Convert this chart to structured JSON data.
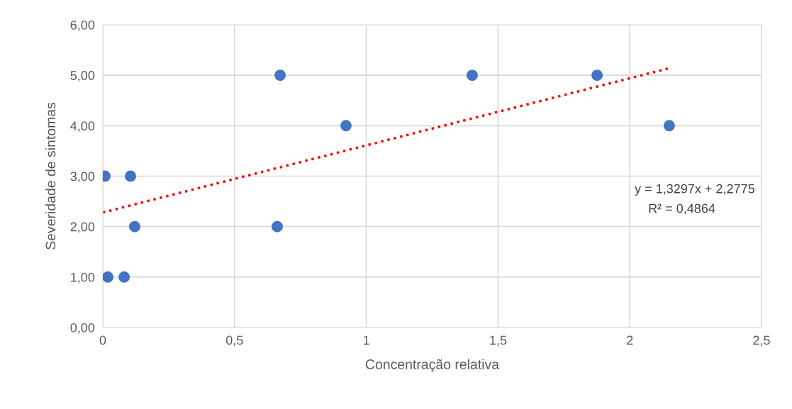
{
  "chart_data": {
    "type": "scatter",
    "xlabel": "Concentração relativa",
    "ylabel": "Severidade de sintomas",
    "series": [
      {
        "color": "#4472c4",
        "marker": "circle",
        "x": [
          0.008,
          0.019,
          0.081,
          0.105,
          0.121,
          0.662,
          0.673,
          0.923,
          1.402,
          1.876,
          2.15
        ],
        "values": [
          3,
          1,
          1,
          3,
          2,
          2,
          5,
          4,
          5,
          5,
          4
        ]
      },
      {
        "type": "line",
        "color": "#ff0000",
        "line_style": "dotted",
        "marker": "none",
        "x": [
          0,
          2.15
        ],
        "values": [
          2.28,
          5.14
        ]
      }
    ],
    "xlim": [
      0,
      2.5
    ],
    "xticks": [
      0,
      {
        "value": 0.5,
        "label": "0,5"
      },
      1,
      {
        "value": 1.5,
        "label": "1,5"
      },
      2,
      {
        "value": 2.5,
        "label": "2,5"
      }
    ],
    "ylim": [
      0,
      6
    ],
    "yticks": [
      {
        "value": 0,
        "label": "0,00"
      },
      {
        "value": 1,
        "label": "1,00"
      },
      {
        "value": 2,
        "label": "2,00"
      },
      {
        "value": 3,
        "label": "3,00"
      },
      {
        "value": 4,
        "label": "4,00"
      },
      {
        "value": 5,
        "label": "5,00"
      },
      {
        "value": 6,
        "label": "6,00"
      }
    ],
    "grid": true,
    "annotations": [
      "y = 1,3297x + 2,2775",
      "R² = 0,4864"
    ]
  }
}
